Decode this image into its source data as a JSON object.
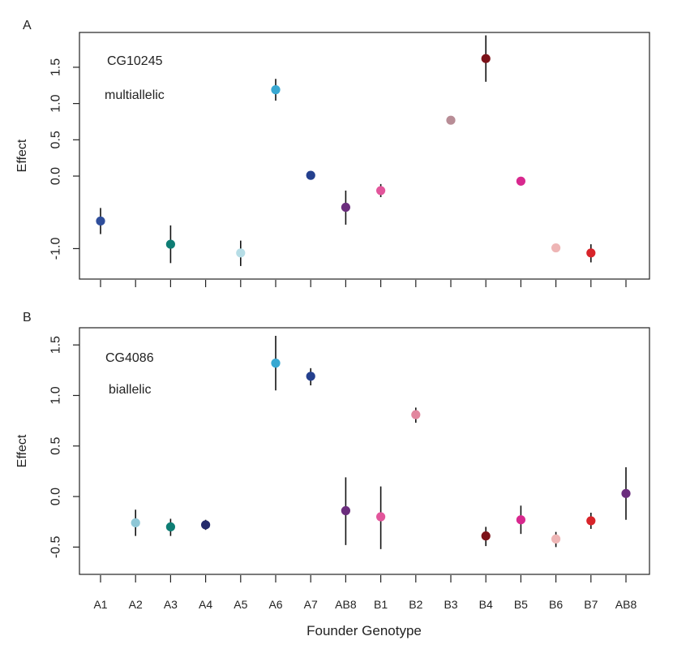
{
  "figure": {
    "xlabel": "Founder Genotype"
  },
  "chart_data": [
    {
      "type": "scatter",
      "panel_label": "A",
      "annotation_gene": "CG10245",
      "annotation_model": "multiallelic",
      "ylabel": "Effect",
      "categories": [
        "A1",
        "A2",
        "A3",
        "A4",
        "A5",
        "A6",
        "A7",
        "AB8",
        "B1",
        "B2",
        "B3",
        "B4",
        "B5",
        "B6",
        "B7",
        "AB8"
      ],
      "yticks": [
        -1.0,
        0.0,
        0.5,
        1.0,
        1.5
      ],
      "ytick_labels": [
        "-1.0",
        "0.0",
        "0.5",
        "1.0",
        "1.5"
      ],
      "ylim": [
        -1.42,
        1.98
      ],
      "grid": false,
      "points": [
        {
          "category": "A1",
          "value": -0.62,
          "lo": -0.8,
          "hi": -0.44,
          "color": "#2f4e9b"
        },
        {
          "category": "A3",
          "value": -0.94,
          "lo": -1.2,
          "hi": -0.68,
          "color": "#0e7d74"
        },
        {
          "category": "A5",
          "value": -1.06,
          "lo": -1.24,
          "hi": -0.89,
          "color": "#b6dde6"
        },
        {
          "category": "A6",
          "value": 1.19,
          "lo": 1.04,
          "hi": 1.34,
          "color": "#38a8d2"
        },
        {
          "category": "A7",
          "value": 0.01,
          "lo": -0.03,
          "hi": 0.05,
          "color": "#24408e"
        },
        {
          "category": "B1",
          "value": -0.2,
          "lo": -0.29,
          "hi": -0.11,
          "color": "#e2559b"
        },
        {
          "category": "B3",
          "value": 0.77,
          "lo": 0.73,
          "hi": 0.81,
          "color": "#b88d96"
        },
        {
          "category": "B4",
          "value": 1.62,
          "lo": 1.3,
          "hi": 1.94,
          "color": "#7c1219"
        },
        {
          "category": "B5",
          "value": -0.07,
          "lo": -0.13,
          "hi": -0.01,
          "color": "#d8288e"
        },
        {
          "category": "B6",
          "value": -0.99,
          "lo": -1.04,
          "hi": -0.94,
          "color": "#eeb5b5"
        },
        {
          "category": "B7",
          "value": -1.06,
          "lo": -1.19,
          "hi": -0.94,
          "color": "#d8242a"
        },
        {
          "category": "AB8",
          "value": -0.43,
          "lo": -0.67,
          "hi": -0.2,
          "color": "#6b2d7d"
        }
      ]
    },
    {
      "type": "scatter",
      "panel_label": "B",
      "annotation_gene": "CG4086",
      "annotation_model": "biallelic",
      "ylabel": "Effect",
      "categories": [
        "A1",
        "A2",
        "A3",
        "A4",
        "A5",
        "A6",
        "A7",
        "AB8",
        "B1",
        "B2",
        "B3",
        "B4",
        "B5",
        "B6",
        "B7",
        "AB8"
      ],
      "yticks": [
        -0.5,
        0.0,
        0.5,
        1.0,
        1.5
      ],
      "ytick_labels": [
        "-0.5",
        "0.0",
        "0.5",
        "1.0",
        "1.5"
      ],
      "ylim": [
        -0.77,
        1.67
      ],
      "grid": false,
      "points": [
        {
          "category": "A2",
          "value": -0.26,
          "lo": -0.39,
          "hi": -0.13,
          "color": "#8fc7d6"
        },
        {
          "category": "A3",
          "value": -0.3,
          "lo": -0.39,
          "hi": -0.22,
          "color": "#0e7d74"
        },
        {
          "category": "A4",
          "value": -0.28,
          "lo": -0.33,
          "hi": -0.23,
          "color": "#242a6b"
        },
        {
          "category": "A6",
          "value": 1.32,
          "lo": 1.05,
          "hi": 1.59,
          "color": "#38a8d2"
        },
        {
          "category": "A7",
          "value": 1.19,
          "lo": 1.1,
          "hi": 1.27,
          "color": "#24408e"
        },
        {
          "category": "AB8",
          "value": -0.14,
          "lo": -0.48,
          "hi": 0.19,
          "color": "#6b2d7d"
        },
        {
          "category": "B1",
          "value": -0.2,
          "lo": -0.52,
          "hi": 0.1,
          "color": "#e2559b"
        },
        {
          "category": "B2",
          "value": 0.81,
          "lo": 0.73,
          "hi": 0.88,
          "color": "#e2869e"
        },
        {
          "category": "B4",
          "value": -0.39,
          "lo": -0.49,
          "hi": -0.3,
          "color": "#7c1219"
        },
        {
          "category": "B5",
          "value": -0.23,
          "lo": -0.37,
          "hi": -0.09,
          "color": "#d8288e"
        },
        {
          "category": "B6",
          "value": -0.42,
          "lo": -0.5,
          "hi": -0.35,
          "color": "#eeb5b5"
        },
        {
          "category": "B7",
          "value": -0.24,
          "lo": -0.32,
          "hi": -0.16,
          "color": "#d8242a"
        },
        {
          "category": "AB8",
          "value": 0.03,
          "lo": -0.23,
          "hi": 0.29,
          "color": "#6b2d7d"
        }
      ]
    }
  ]
}
